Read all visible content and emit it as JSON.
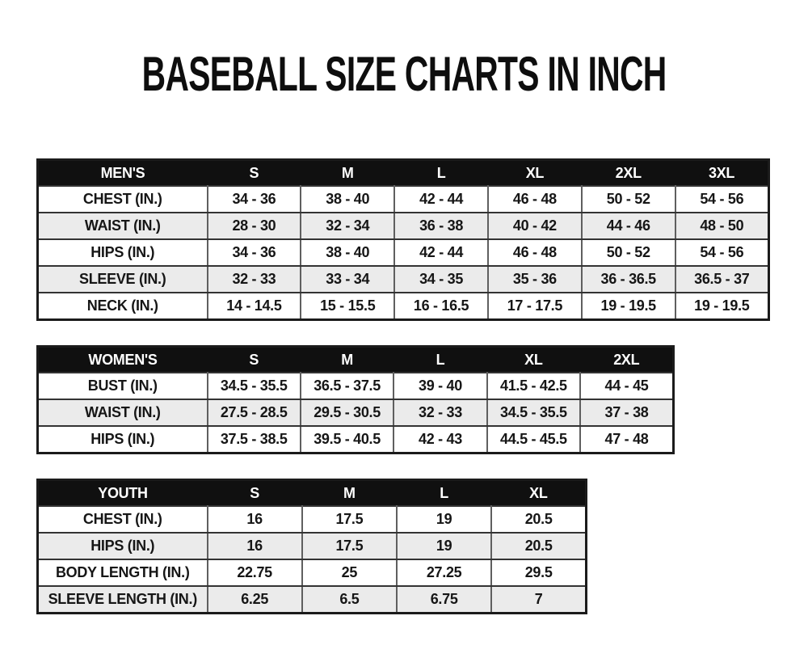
{
  "page_title": "BASEBALL SIZE CHARTS IN INCH",
  "colors": {
    "background": "#ffffff",
    "header_bg": "#101010",
    "header_text": "#ffffff",
    "row_bg": "#ffffff",
    "row_alt_bg": "#ebebeb",
    "border": "#333333",
    "text": "#141414"
  },
  "chart_data": [
    {
      "type": "table",
      "name": "mens-size-table",
      "title": "MEN'S",
      "columns": [
        "MEN'S",
        "S",
        "M",
        "L",
        "XL",
        "2XL",
        "3XL"
      ],
      "rows": [
        [
          "CHEST (IN.)",
          "34 - 36",
          "38 - 40",
          "42 - 44",
          "46 - 48",
          "50 - 52",
          "54 - 56"
        ],
        [
          "WAIST (IN.)",
          "28 - 30",
          "32 - 34",
          "36 - 38",
          "40 - 42",
          "44 - 46",
          "48 - 50"
        ],
        [
          "HIPS (IN.)",
          "34 - 36",
          "38 - 40",
          "42 - 44",
          "46 - 48",
          "50 - 52",
          "54 - 56"
        ],
        [
          "SLEEVE (IN.)",
          "32 - 33",
          "33 - 34",
          "34 - 35",
          "35 - 36",
          "36 - 36.5",
          "36.5 - 37"
        ],
        [
          "NECK (IN.)",
          "14 - 14.5",
          "15 - 15.5",
          "16 - 16.5",
          "17 - 17.5",
          "19 - 19.5",
          "19 - 19.5"
        ]
      ]
    },
    {
      "type": "table",
      "name": "womens-size-table",
      "title": "WOMEN'S",
      "columns": [
        "WOMEN'S",
        "S",
        "M",
        "L",
        "XL",
        "2XL"
      ],
      "rows": [
        [
          "BUST (IN.)",
          "34.5 - 35.5",
          "36.5 - 37.5",
          "39 - 40",
          "41.5 - 42.5",
          "44 - 45"
        ],
        [
          "WAIST (IN.)",
          "27.5 - 28.5",
          "29.5 - 30.5",
          "32 - 33",
          "34.5 - 35.5",
          "37 - 38"
        ],
        [
          "HIPS (IN.)",
          "37.5 - 38.5",
          "39.5 - 40.5",
          "42 - 43",
          "44.5 - 45.5",
          "47 - 48"
        ]
      ]
    },
    {
      "type": "table",
      "name": "youth-size-table",
      "title": "YOUTH",
      "columns": [
        "YOUTH",
        "S",
        "M",
        "L",
        "XL"
      ],
      "rows": [
        [
          "CHEST (IN.)",
          "16",
          "17.5",
          "19",
          "20.5"
        ],
        [
          "HIPS (IN.)",
          "16",
          "17.5",
          "19",
          "20.5"
        ],
        [
          "BODY LENGTH (IN.)",
          "22.75",
          "25",
          "27.25",
          "29.5"
        ],
        [
          "SLEEVE LENGTH (IN.)",
          "6.25",
          "6.5",
          "6.75",
          "7"
        ]
      ]
    }
  ]
}
